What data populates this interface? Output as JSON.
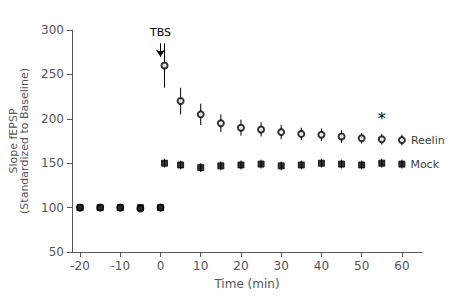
{
  "chart_data": {
    "type": "scatter",
    "x": [
      -20,
      -15,
      -10,
      -5,
      0,
      1,
      5,
      10,
      15,
      20,
      25,
      30,
      35,
      40,
      45,
      50,
      55,
      60
    ],
    "series": [
      {
        "name": "Reelin",
        "color": "#000000",
        "marker": "open_circle",
        "values": [
          100,
          100,
          100,
          99,
          100,
          260,
          220,
          205,
          195,
          190,
          188,
          185,
          183,
          182,
          180,
          178,
          177,
          176
        ],
        "errors": [
          3,
          3,
          3,
          3,
          3,
          25,
          15,
          12,
          10,
          9,
          8,
          8,
          7,
          7,
          7,
          6,
          6,
          6
        ]
      },
      {
        "name": "Mock",
        "color": "#000000",
        "marker": "square",
        "values": [
          100,
          100,
          100,
          100,
          100,
          150,
          148,
          145,
          147,
          148,
          149,
          147,
          148,
          150,
          149,
          148,
          150,
          149
        ],
        "errors": [
          3,
          3,
          3,
          3,
          3,
          5,
          5,
          5,
          5,
          5,
          5,
          5,
          5,
          5,
          5,
          5,
          5,
          5
        ]
      }
    ],
    "xlabel": "Time (min)",
    "ylabel": "Slope fEPSP\n(Standardized to Baseline)",
    "xlim": [
      -22,
      65
    ],
    "xticks": [
      -20,
      -10,
      0,
      10,
      20,
      30,
      40,
      50,
      60
    ],
    "ylim": [
      50,
      300
    ],
    "yticks": [
      50,
      100,
      150,
      200,
      250,
      300
    ],
    "grid": false,
    "annotations": [
      {
        "text": "TBS",
        "x": 0,
        "y": 285,
        "arrow_to": [
          0,
          270
        ]
      },
      {
        "text": "*",
        "x": 55,
        "y": 200
      }
    ]
  }
}
